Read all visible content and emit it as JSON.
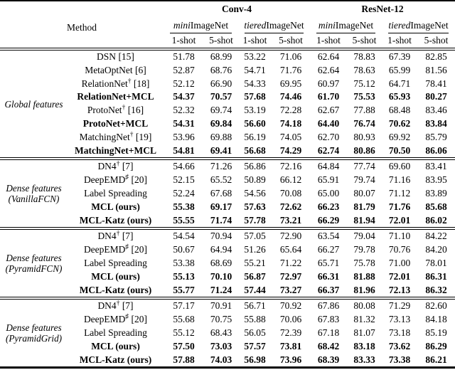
{
  "table": {
    "header": {
      "method_label": "Method",
      "archs": [
        {
          "label": "Conv-4"
        },
        {
          "label": "ResNet-12"
        }
      ],
      "datasets": [
        {
          "prefix": "mini",
          "suffix": "ImageNet"
        },
        {
          "prefix": "tiered",
          "suffix": "ImageNet"
        },
        {
          "prefix": "mini",
          "suffix": "ImageNet"
        },
        {
          "prefix": "tiered",
          "suffix": "ImageNet"
        }
      ],
      "shots": [
        "1-shot",
        "5-shot",
        "1-shot",
        "5-shot",
        "1-shot",
        "5-shot",
        "1-shot",
        "5-shot"
      ]
    },
    "groups": [
      {
        "label_lines": [
          "Global features"
        ],
        "rows": [
          {
            "method": "DSN",
            "sup": "",
            "ref": "[15]",
            "bold": false,
            "values": [
              "51.78",
              "68.99",
              "53.22",
              "71.06",
              "62.64",
              "78.83",
              "67.39",
              "82.85"
            ]
          },
          {
            "method": "MetaOptNet",
            "sup": "",
            "ref": "[6]",
            "bold": false,
            "values": [
              "52.87",
              "68.76",
              "54.71",
              "71.76",
              "62.64",
              "78.63",
              "65.99",
              "81.56"
            ]
          },
          {
            "method": "RelationNet",
            "sup": "†",
            "ref": "[18]",
            "bold": false,
            "values": [
              "52.12",
              "66.90",
              "54.33",
              "69.95",
              "60.97",
              "75.12",
              "64.71",
              "78.41"
            ]
          },
          {
            "method": "RelationNet+MCL",
            "sup": "",
            "ref": "",
            "bold": true,
            "values": [
              "54.37",
              "70.57",
              "57.68",
              "74.46",
              "61.70",
              "75.53",
              "65.93",
              "80.27"
            ]
          },
          {
            "method": "ProtoNet",
            "sup": "†",
            "ref": "[16]",
            "bold": false,
            "values": [
              "52.32",
              "69.74",
              "53.19",
              "72.28",
              "62.67",
              "77.88",
              "68.48",
              "83.46"
            ]
          },
          {
            "method": "ProtoNet+MCL",
            "sup": "",
            "ref": "",
            "bold": true,
            "values": [
              "54.31",
              "69.84",
              "56.60",
              "74.18",
              "64.40",
              "76.74",
              "70.62",
              "83.84"
            ]
          },
          {
            "method": "MatchingNet",
            "sup": "†",
            "ref": "[19]",
            "bold": false,
            "values": [
              "53.96",
              "69.88",
              "56.19",
              "74.05",
              "62.70",
              "80.93",
              "69.92",
              "85.79"
            ]
          },
          {
            "method": "MatchingNet+MCL",
            "sup": "",
            "ref": "",
            "bold": true,
            "values": [
              "54.81",
              "69.41",
              "56.68",
              "74.29",
              "62.74",
              "80.86",
              "70.50",
              "86.06"
            ]
          }
        ]
      },
      {
        "label_lines": [
          "Dense features",
          "(VanillaFCN)"
        ],
        "rows": [
          {
            "method": "DN4",
            "sup": "†",
            "ref": "[7]",
            "bold": false,
            "values": [
              "54.66",
              "71.26",
              "56.86",
              "72.16",
              "64.84",
              "77.74",
              "69.60",
              "83.41"
            ]
          },
          {
            "method": "DeepEMD",
            "sup": "♯",
            "ref": "[20]",
            "bold": false,
            "values": [
              "52.15",
              "65.52",
              "50.89",
              "66.12",
              "65.91",
              "79.74",
              "71.16",
              "83.95"
            ]
          },
          {
            "method": "Label Spreading",
            "sup": "",
            "ref": "",
            "bold": false,
            "values": [
              "52.24",
              "67.68",
              "54.56",
              "70.08",
              "65.00",
              "80.07",
              "71.12",
              "83.89"
            ]
          },
          {
            "method": "MCL (ours)",
            "sup": "",
            "ref": "",
            "bold": true,
            "values": [
              "55.38",
              "69.17",
              "57.63",
              "72.62",
              "66.23",
              "81.79",
              "71.76",
              "85.68"
            ]
          },
          {
            "method": "MCL-Katz (ours)",
            "sup": "",
            "ref": "",
            "bold": true,
            "values": [
              "55.55",
              "71.74",
              "57.78",
              "73.21",
              "66.29",
              "81.94",
              "72.01",
              "86.02"
            ]
          }
        ]
      },
      {
        "label_lines": [
          "Dense features",
          "(PyramidFCN)"
        ],
        "rows": [
          {
            "method": "DN4",
            "sup": "†",
            "ref": "[7]",
            "bold": false,
            "values": [
              "54.54",
              "70.94",
              "57.05",
              "72.90",
              "63.54",
              "79.04",
              "71.10",
              "84.22"
            ]
          },
          {
            "method": "DeepEMD",
            "sup": "♯",
            "ref": "[20]",
            "bold": false,
            "values": [
              "50.67",
              "64.94",
              "51.26",
              "65.64",
              "66.27",
              "79.78",
              "70.76",
              "84.20"
            ]
          },
          {
            "method": "Label Spreading",
            "sup": "",
            "ref": "",
            "bold": false,
            "values": [
              "53.38",
              "68.69",
              "55.21",
              "71.22",
              "65.71",
              "75.78",
              "71.00",
              "78.01"
            ]
          },
          {
            "method": "MCL (ours)",
            "sup": "",
            "ref": "",
            "bold": true,
            "values": [
              "55.13",
              "70.10",
              "56.87",
              "72.97",
              "66.31",
              "81.88",
              "72.01",
              "86.31"
            ]
          },
          {
            "method": "MCL-Katz (ours)",
            "sup": "",
            "ref": "",
            "bold": true,
            "values": [
              "55.77",
              "71.24",
              "57.44",
              "73.27",
              "66.37",
              "81.96",
              "72.13",
              "86.32"
            ]
          }
        ]
      },
      {
        "label_lines": [
          "Dense features",
          "(PyramidGrid)"
        ],
        "rows": [
          {
            "method": "DN4",
            "sup": "†",
            "ref": "[7]",
            "bold": false,
            "values": [
              "57.17",
              "70.91",
              "56.71",
              "70.92",
              "67.86",
              "80.08",
              "71.29",
              "82.60"
            ]
          },
          {
            "method": "DeepEMD",
            "sup": "♯",
            "ref": "[20]",
            "bold": false,
            "values": [
              "55.68",
              "70.75",
              "55.88",
              "70.06",
              "67.83",
              "81.32",
              "73.13",
              "84.18"
            ]
          },
          {
            "method": "Label Spreading",
            "sup": "",
            "ref": "",
            "bold": false,
            "values": [
              "55.12",
              "68.43",
              "56.05",
              "72.39",
              "67.18",
              "81.07",
              "73.18",
              "85.19"
            ]
          },
          {
            "method": "MCL (ours)",
            "sup": "",
            "ref": "",
            "bold": true,
            "values": [
              "57.50",
              "73.03",
              "57.57",
              "73.81",
              "68.42",
              "83.18",
              "73.62",
              "86.29"
            ]
          },
          {
            "method": "MCL-Katz (ours)",
            "sup": "",
            "ref": "",
            "bold": true,
            "values": [
              "57.88",
              "74.03",
              "56.98",
              "73.96",
              "68.39",
              "83.33",
              "73.38",
              "86.21"
            ]
          }
        ]
      }
    ]
  }
}
